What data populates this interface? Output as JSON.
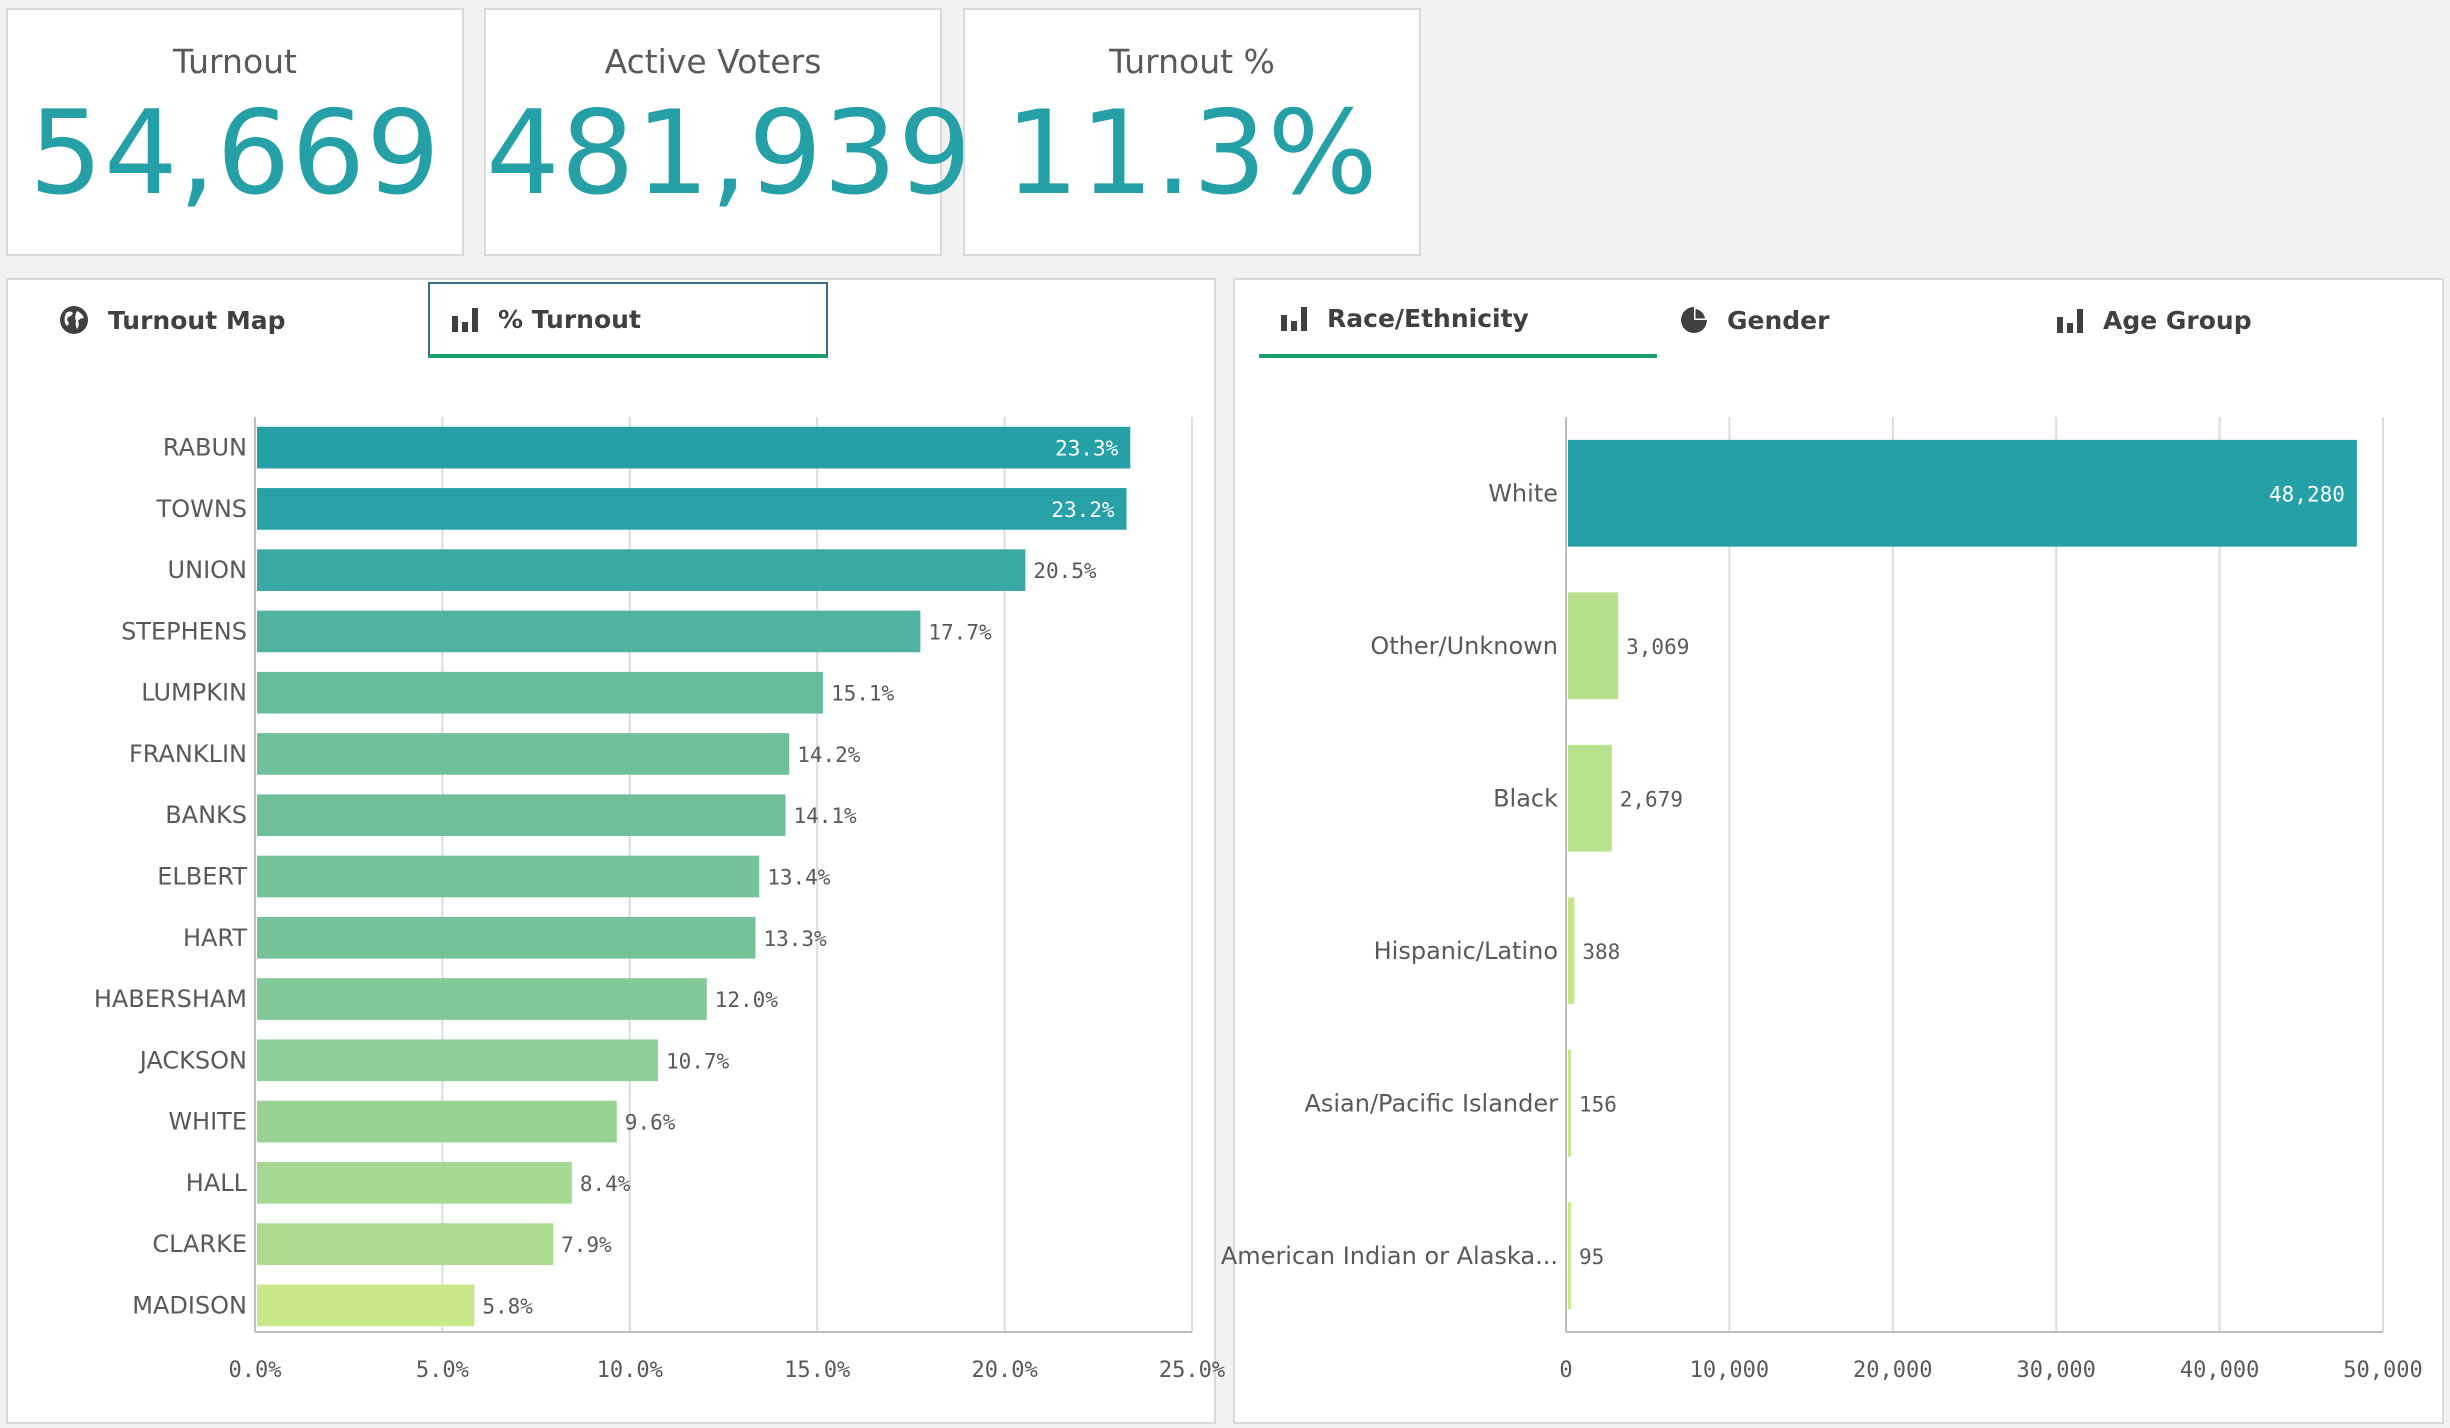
{
  "kpis": [
    {
      "title": "Turnout",
      "value": "54,669"
    },
    {
      "title": "Active Voters",
      "value": "481,939"
    },
    {
      "title": "Turnout %",
      "value": "11.3%"
    }
  ],
  "left_panel": {
    "tabs": [
      {
        "label": "Turnout Map",
        "icon": "globe-icon"
      },
      {
        "label": "% Turnout",
        "icon": "bar-chart-icon"
      }
    ],
    "active_tab": "% Turnout"
  },
  "right_panel": {
    "tabs": [
      {
        "label": "Race/Ethnicity",
        "icon": "bar-chart-icon"
      },
      {
        "label": "Gender",
        "icon": "pie-chart-icon"
      },
      {
        "label": "Age Group",
        "icon": "bar-chart-icon"
      }
    ],
    "active_tab": "Race/Ethnicity"
  },
  "colors": {
    "accent": "#26a0a7",
    "tab_underline": "#1d9e6b",
    "bar_light": "#c8e88a",
    "grid": "#dcdcdc"
  },
  "chart_data": [
    {
      "type": "bar",
      "orientation": "horizontal",
      "categories": [
        "RABUN",
        "TOWNS",
        "UNION",
        "STEPHENS",
        "LUMPKIN",
        "FRANKLIN",
        "BANKS",
        "ELBERT",
        "HART",
        "HABERSHAM",
        "JACKSON",
        "WHITE",
        "HALL",
        "CLARKE",
        "MADISON"
      ],
      "values": [
        23.3,
        23.2,
        20.5,
        17.7,
        15.1,
        14.2,
        14.1,
        13.4,
        13.3,
        12.0,
        10.7,
        9.6,
        8.4,
        7.9,
        5.8
      ],
      "data_labels": [
        "23.3%",
        "23.2%",
        "20.5%",
        "17.7%",
        "15.1%",
        "14.2%",
        "14.1%",
        "13.4%",
        "13.3%",
        "12.0%",
        "10.7%",
        "9.6%",
        "8.4%",
        "7.9%",
        "5.8%"
      ],
      "xlim": [
        0,
        25
      ],
      "xticks": [
        "0.0%",
        "5.0%",
        "10.0%",
        "15.0%",
        "20.0%",
        "25.0%"
      ],
      "grid": true,
      "color_scale": [
        "#c8e88a",
        "#26a0a7"
      ]
    },
    {
      "type": "bar",
      "orientation": "horizontal",
      "categories": [
        "White",
        "Other/Unknown",
        "Black",
        "Hispanic/Latino",
        "Asian/Pacific Islander",
        "American Indian or Alaska..."
      ],
      "values": [
        48280,
        3069,
        2679,
        388,
        156,
        95
      ],
      "data_labels": [
        "48,280",
        "3,069",
        "2,679",
        "388",
        "156",
        "95"
      ],
      "xlim": [
        0,
        50000
      ],
      "xticks": [
        "0",
        "10,000",
        "20,000",
        "30,000",
        "40,000",
        "50,000"
      ],
      "grid": true,
      "color_scale": [
        "#c8e88a",
        "#26a0a7"
      ]
    }
  ]
}
